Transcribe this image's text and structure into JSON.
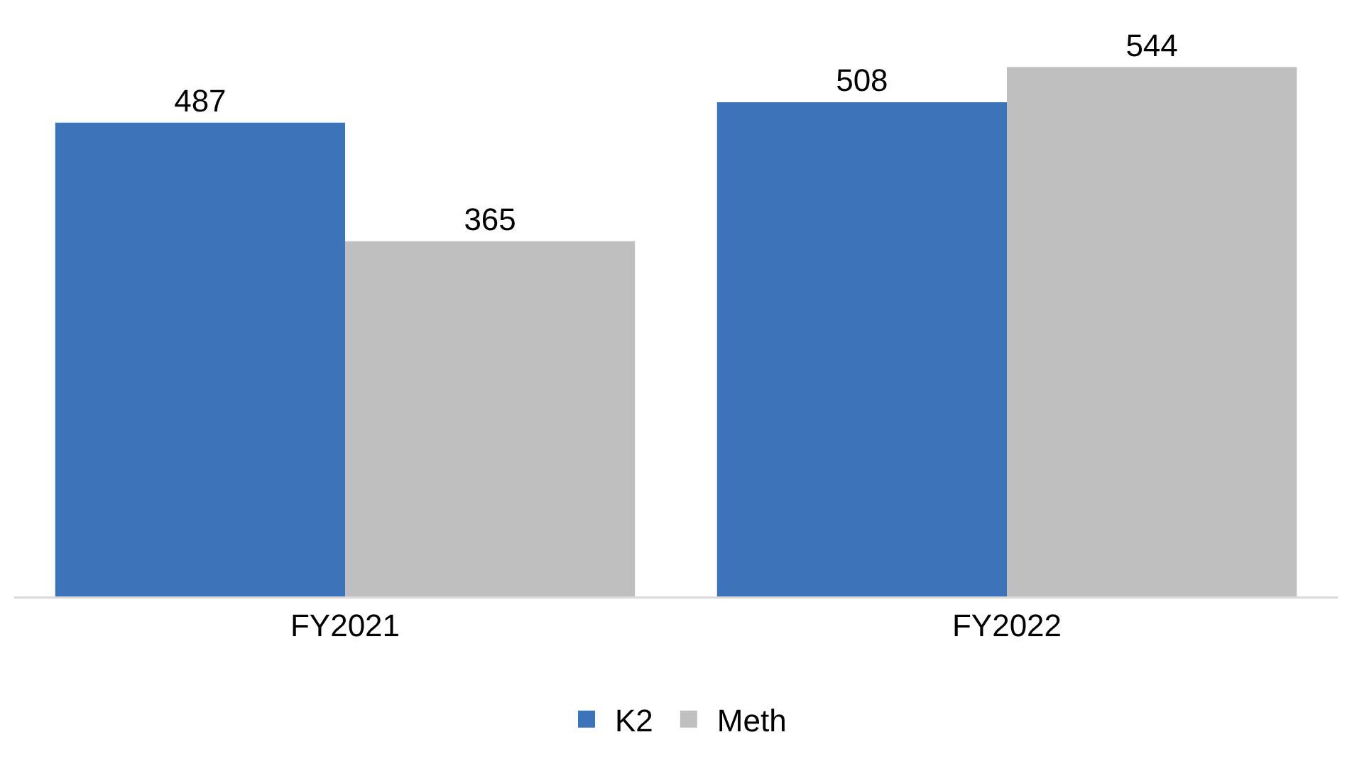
{
  "chart_data": {
    "type": "bar",
    "categories": [
      "FY2021",
      "FY2022"
    ],
    "series": [
      {
        "name": "K2",
        "color": "#3d73b9",
        "values": [
          487,
          508
        ]
      },
      {
        "name": "Meth",
        "color": "#bfbfbf",
        "values": [
          365,
          544
        ]
      }
    ],
    "data_labels": true,
    "legend": "bottom"
  }
}
